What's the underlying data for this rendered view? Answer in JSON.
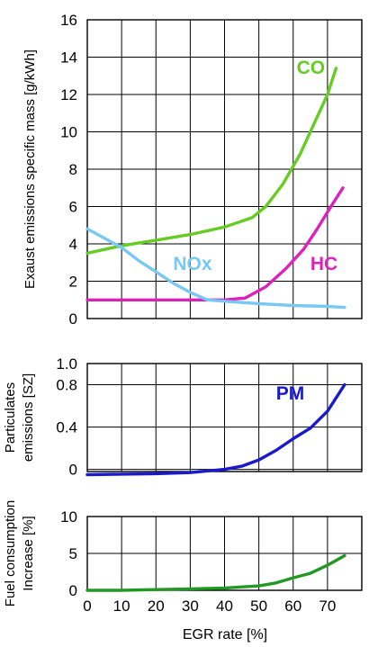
{
  "chart_data": [
    {
      "type": "line",
      "ylabel": "Exaust emissions specific mass [g/kWh]",
      "xlim": [
        0,
        80
      ],
      "ylim": [
        0,
        16
      ],
      "yticks": [
        0,
        2,
        4,
        6,
        8,
        10,
        12,
        14,
        16
      ],
      "xgrid": [
        0,
        10,
        20,
        30,
        40,
        50,
        60,
        70
      ],
      "grid": true,
      "series": [
        {
          "name": "CO",
          "color": "#66cc22",
          "points": [
            [
              0,
              3.5
            ],
            [
              5,
              3.7
            ],
            [
              10,
              3.9
            ],
            [
              20,
              4.2
            ],
            [
              30,
              4.5
            ],
            [
              40,
              4.9
            ],
            [
              48,
              5.4
            ],
            [
              52,
              6.0
            ],
            [
              57,
              7.2
            ],
            [
              62,
              8.8
            ],
            [
              66,
              10.4
            ],
            [
              70,
              12.0
            ],
            [
              72.5,
              13.4
            ]
          ],
          "label_at": [
            61,
            13.1
          ]
        },
        {
          "name": "HC",
          "color": "#dd22bb",
          "points": [
            [
              0,
              1.0
            ],
            [
              10,
              1.0
            ],
            [
              20,
              1.0
            ],
            [
              30,
              1.0
            ],
            [
              40,
              1.0
            ],
            [
              46,
              1.1
            ],
            [
              52,
              1.7
            ],
            [
              58,
              2.7
            ],
            [
              63,
              3.7
            ],
            [
              67,
              4.8
            ],
            [
              71,
              6.0
            ],
            [
              74.5,
              7.0
            ]
          ],
          "label_at": [
            65,
            2.6
          ]
        },
        {
          "name": "NOx",
          "color": "#77c8f2",
          "points": [
            [
              0,
              4.8
            ],
            [
              5,
              4.3
            ],
            [
              10,
              3.8
            ],
            [
              15,
              3.1
            ],
            [
              20,
              2.5
            ],
            [
              25,
              1.9
            ],
            [
              30,
              1.4
            ],
            [
              35,
              1.0
            ],
            [
              42,
              0.9
            ],
            [
              50,
              0.8
            ],
            [
              60,
              0.7
            ],
            [
              70,
              0.65
            ],
            [
              75,
              0.6
            ]
          ],
          "label_at": [
            25,
            2.6
          ]
        }
      ]
    },
    {
      "type": "line",
      "ylabel": [
        "Particulates",
        "emissions [SZ]"
      ],
      "xlim": [
        0,
        80
      ],
      "ylim": [
        -0.02,
        1.0
      ],
      "yticks": [
        0,
        0.4,
        0.8,
        1.0
      ],
      "ytick_labels": [
        "0",
        "0.4",
        "0.8",
        "1.0"
      ],
      "xgrid": [
        0,
        10,
        20,
        30,
        40,
        50,
        60,
        70
      ],
      "grid": true,
      "series": [
        {
          "name": "PM",
          "color": "#1a1acc",
          "points": [
            [
              0,
              -0.05
            ],
            [
              10,
              -0.045
            ],
            [
              20,
              -0.04
            ],
            [
              30,
              -0.03
            ],
            [
              40,
              0.0
            ],
            [
              45,
              0.03
            ],
            [
              50,
              0.09
            ],
            [
              55,
              0.18
            ],
            [
              60,
              0.29
            ],
            [
              65,
              0.39
            ],
            [
              70,
              0.55
            ],
            [
              75,
              0.8
            ]
          ],
          "label_at": [
            55,
            0.66
          ]
        }
      ]
    },
    {
      "type": "line",
      "ylabel": [
        "Fuel consumption",
        "Increase [%]"
      ],
      "xlabel": "EGR rate [%]",
      "xlim": [
        0,
        80
      ],
      "ylim": [
        0,
        10
      ],
      "yticks": [
        0,
        5,
        10
      ],
      "xticks": [
        0,
        10,
        20,
        30,
        40,
        50,
        60,
        70
      ],
      "xgrid": [
        0,
        10,
        20,
        30,
        40,
        50,
        60,
        70
      ],
      "grid": true,
      "series": [
        {
          "color": "#229922",
          "points": [
            [
              0,
              0
            ],
            [
              10,
              0
            ],
            [
              20,
              0.1
            ],
            [
              30,
              0.2
            ],
            [
              40,
              0.3
            ],
            [
              50,
              0.6
            ],
            [
              55,
              1.0
            ],
            [
              60,
              1.7
            ],
            [
              65,
              2.3
            ],
            [
              70,
              3.4
            ],
            [
              75,
              4.7
            ]
          ]
        }
      ]
    }
  ]
}
